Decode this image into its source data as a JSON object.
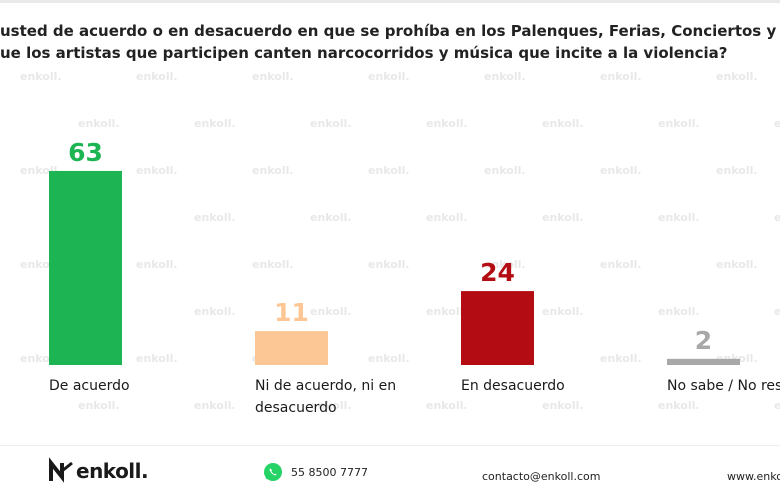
{
  "question": {
    "line1": "usted de acuerdo o en desacuerdo en que se prohíba en los Palenques, Ferias, Conciertos y presentaciones",
    "line2": "ue los artistas que participen canten narcocorridos y música que incite a la violencia?"
  },
  "watermark_text": "enkoll.",
  "chart_data": {
    "type": "bar",
    "title": "",
    "xlabel": "",
    "ylabel": "",
    "ylim": [
      0,
      70
    ],
    "grid": false,
    "categories": [
      [
        "De acuerdo"
      ],
      [
        "Ni de acuerdo, ni en",
        "desacuerdo"
      ],
      [
        "En desacuerdo"
      ],
      [
        "No sabe / No respondió"
      ]
    ],
    "values": [
      63,
      11,
      24,
      2
    ],
    "colors": [
      "#1db553",
      "#fcc795",
      "#b30d13",
      "#a8a8a8"
    ]
  },
  "footer": {
    "brand": "enkoll.",
    "phone": "55 8500 7777",
    "email": "contacto@enkoll.com",
    "web": "www.enko"
  }
}
